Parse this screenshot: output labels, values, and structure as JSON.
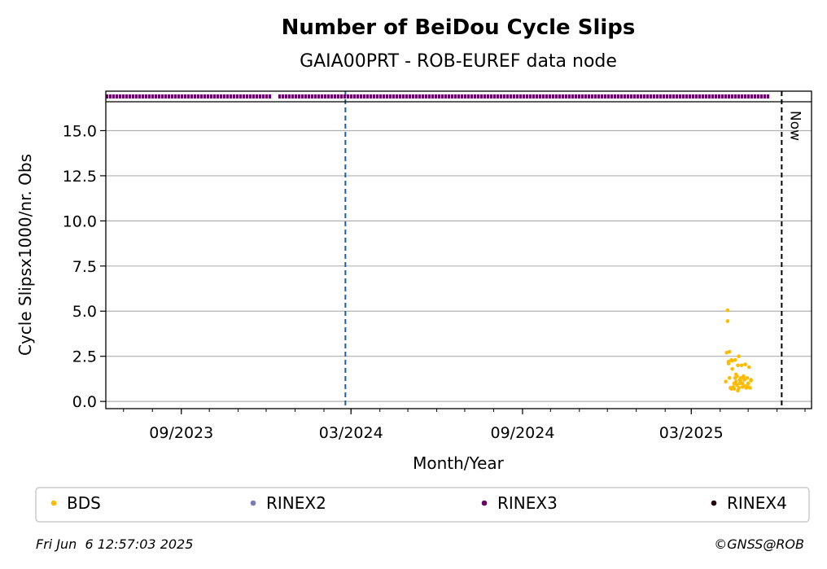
{
  "chart_data": {
    "type": "scatter",
    "title": "Number of BeiDou Cycle Slips",
    "subtitle": "GAIA00PRT - ROB-EUREF data node",
    "xlabel": "Month/Year",
    "ylabel": "Cycle Slipsx1000/nr. Obs",
    "x_ticks": [
      {
        "date": "2023-09-01",
        "label": "09/2023"
      },
      {
        "date": "2024-03-01",
        "label": "03/2024"
      },
      {
        "date": "2024-09-01",
        "label": "09/2024"
      },
      {
        "date": "2025-03-01",
        "label": "03/2025"
      }
    ],
    "xlim": [
      "2023-06-12",
      "2025-07-08"
    ],
    "ylim": [
      -0.4,
      16.6
    ],
    "y_ticks": [
      "0.0",
      "2.5",
      "5.0",
      "7.5",
      "10.0",
      "12.5",
      "15.0"
    ],
    "grid": "horizontal",
    "vlines": [
      {
        "date": "2024-02-24",
        "color": "#1f5fa0",
        "style": "dashed"
      },
      {
        "date": "2025-06-06",
        "color": "#000000",
        "style": "dashed",
        "label": "Now"
      }
    ],
    "rinex_strip": {
      "series": "RINEX3",
      "color": "#660066",
      "segments": [
        [
          "2023-06-12",
          "2023-12-07"
        ],
        [
          "2023-12-14",
          "2025-05-24"
        ]
      ]
    },
    "series": [
      {
        "name": "BDS",
        "color": "#ffbb00",
        "points": [
          [
            "2025-04-07",
            1.1
          ],
          [
            "2025-04-08",
            2.7
          ],
          [
            "2025-04-09",
            4.45
          ],
          [
            "2025-04-09",
            5.05
          ],
          [
            "2025-04-10",
            2.2
          ],
          [
            "2025-04-10",
            2.1
          ],
          [
            "2025-04-11",
            2.75
          ],
          [
            "2025-04-11",
            1.3
          ],
          [
            "2025-04-12",
            0.75
          ],
          [
            "2025-04-13",
            0.7
          ],
          [
            "2025-04-13",
            2.3
          ],
          [
            "2025-04-14",
            1.8
          ],
          [
            "2025-04-14",
            2.25
          ],
          [
            "2025-04-15",
            0.8
          ],
          [
            "2025-04-16",
            0.7
          ],
          [
            "2025-04-16",
            1.0
          ],
          [
            "2025-04-17",
            2.3
          ],
          [
            "2025-04-17",
            1.3
          ],
          [
            "2025-04-18",
            1.1
          ],
          [
            "2025-04-18",
            1.5
          ],
          [
            "2025-04-19",
            0.9
          ],
          [
            "2025-04-19",
            1.4
          ],
          [
            "2025-04-20",
            0.6
          ],
          [
            "2025-04-20",
            2.0
          ],
          [
            "2025-04-21",
            0.75
          ],
          [
            "2025-04-21",
            2.5
          ],
          [
            "2025-04-22",
            1.2
          ],
          [
            "2025-04-22",
            1.0
          ],
          [
            "2025-04-23",
            1.1
          ],
          [
            "2025-04-23",
            1.3
          ],
          [
            "2025-04-24",
            2.0
          ],
          [
            "2025-04-25",
            1.0
          ],
          [
            "2025-04-25",
            0.8
          ],
          [
            "2025-04-26",
            1.3
          ],
          [
            "2025-04-26",
            1.4
          ],
          [
            "2025-04-27",
            1.2
          ],
          [
            "2025-04-28",
            0.85
          ],
          [
            "2025-04-28",
            2.05
          ],
          [
            "2025-04-29",
            0.75
          ],
          [
            "2025-04-30",
            1.3
          ],
          [
            "2025-05-01",
            1.0
          ],
          [
            "2025-05-01",
            0.8
          ],
          [
            "2025-05-02",
            1.9
          ],
          [
            "2025-05-03",
            0.75
          ],
          [
            "2025-05-04",
            1.15
          ],
          [
            "2025-05-04",
            1.2
          ]
        ]
      }
    ],
    "legend": {
      "placement": "bottom",
      "entries": [
        {
          "name": "BDS",
          "color": "#ffbb00"
        },
        {
          "name": "RINEX2",
          "color": "#7b7bbb"
        },
        {
          "name": "RINEX3",
          "color": "#660066"
        },
        {
          "name": "RINEX4",
          "color": "#220011"
        }
      ]
    }
  },
  "footer": {
    "timestamp": "Fri Jun  6 12:57:03 2025",
    "credit": "©GNSS@ROB"
  }
}
